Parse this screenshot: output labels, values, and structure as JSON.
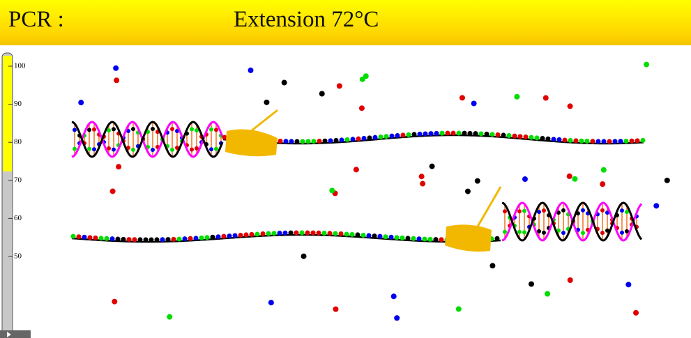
{
  "header": {
    "title": "PCR :",
    "step": "Extension 72°C"
  },
  "thermometer": {
    "ticks": [
      "100",
      "90",
      "80",
      "70",
      "60",
      "50"
    ]
  }
}
